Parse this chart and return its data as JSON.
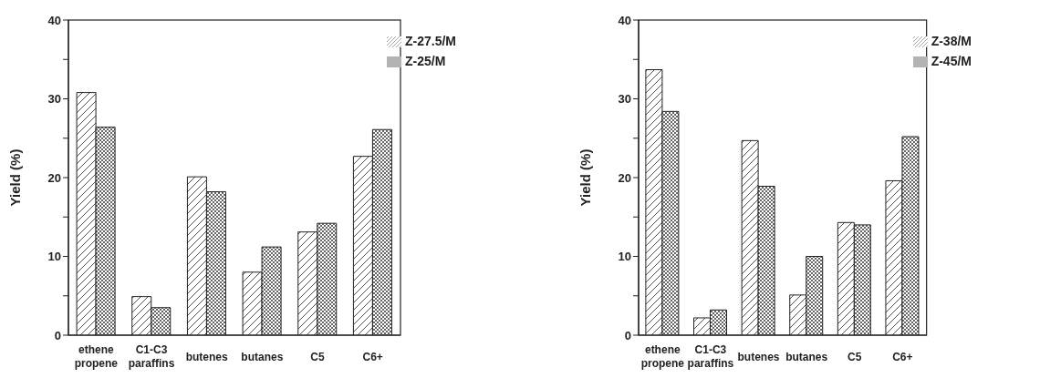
{
  "chart_data": [
    {
      "type": "bar",
      "ylabel": "Yield (%)",
      "categories": [
        "ethene\npropene",
        "C1-C3\nparaffins",
        "butenes",
        "butanes",
        "C5",
        "C6+"
      ],
      "ylim": [
        0,
        40
      ],
      "yticks": [
        0,
        {
          "value": 5,
          "label": null
        },
        10,
        {
          "value": 15,
          "label": null
        },
        20,
        {
          "value": 25,
          "label": null
        },
        30,
        {
          "value": 35,
          "label": null
        },
        40
      ],
      "legend": "top right",
      "series": [
        {
          "name": "Z-27.5/M",
          "color": "#222222",
          "values": [
            30.8,
            4.9,
            20.1,
            8.0,
            13.1,
            22.7
          ]
        },
        {
          "name": "Z-25/M",
          "color": "#222222",
          "values": [
            26.4,
            3.5,
            18.2,
            11.2,
            14.2,
            26.1
          ]
        }
      ]
    },
    {
      "type": "bar",
      "ylabel": "Yield (%)",
      "categories": [
        "ethene\npropene",
        "C1-C3\nparaffins",
        "butenes",
        "butanes",
        "C5",
        "C6+"
      ],
      "ylim": [
        0,
        40
      ],
      "yticks": [
        0,
        {
          "value": 5,
          "label": null
        },
        10,
        {
          "value": 15,
          "label": null
        },
        20,
        {
          "value": 25,
          "label": null
        },
        30,
        {
          "value": 35,
          "label": null
        },
        40
      ],
      "legend": "top right",
      "series": [
        {
          "name": "Z-38/M",
          "color": "#222222",
          "values": [
            33.7,
            2.2,
            24.7,
            5.1,
            14.3,
            19.6
          ]
        },
        {
          "name": "Z-45/M",
          "color": "#222222",
          "values": [
            28.4,
            3.2,
            18.9,
            10.0,
            14.0,
            25.2
          ]
        }
      ]
    }
  ]
}
